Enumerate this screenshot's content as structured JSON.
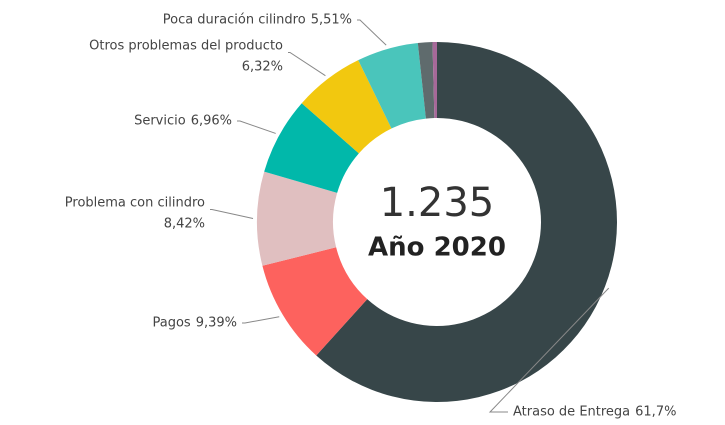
{
  "chart_data": {
    "type": "donut",
    "total_label": "1.235",
    "title": "Año 2020",
    "categories": [
      "Atraso de Entrega",
      "Pagos",
      "Problema con cilindro",
      "Servicio",
      "Otros problemas del producto",
      "Poca duración cilindro",
      null,
      null
    ],
    "values": [
      61.7,
      9.39,
      8.42,
      6.96,
      6.32,
      5.51,
      1.3,
      0.4
    ],
    "value_labels": [
      "61,7%",
      "9,39%",
      "8,42%",
      "6,96%",
      "6,32%",
      "5,51%",
      null,
      null
    ],
    "colors": [
      "#374649",
      "#fd625e",
      "#e0bfc0",
      "#01b8aa",
      "#f2c80f",
      "#4ac5bb",
      "#5f6b6d",
      "#a66999"
    ]
  }
}
